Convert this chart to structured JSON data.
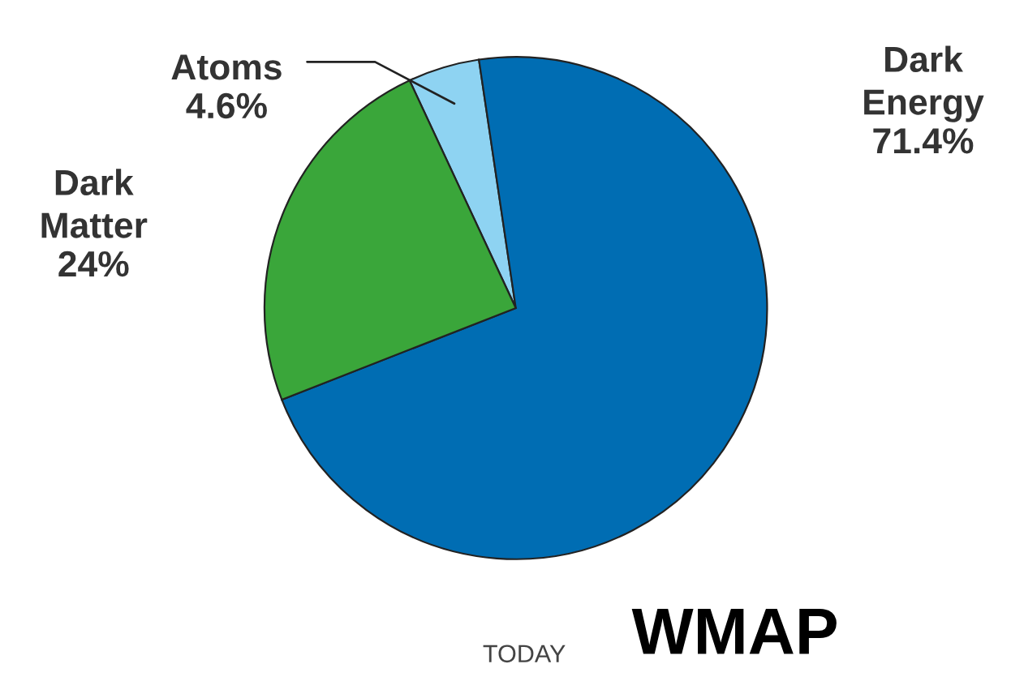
{
  "chart_data": {
    "type": "pie",
    "categories": [
      "Atoms",
      "Dark Energy",
      "Dark Matter"
    ],
    "values": [
      4.6,
      71.4,
      24
    ],
    "colors": [
      "#8ed3f2",
      "#006db3",
      "#3aa63a"
    ],
    "value_labels": [
      "4.6%",
      "71.4%",
      "24%"
    ],
    "annotations": [
      "TODAY",
      "WMAP"
    ]
  }
}
